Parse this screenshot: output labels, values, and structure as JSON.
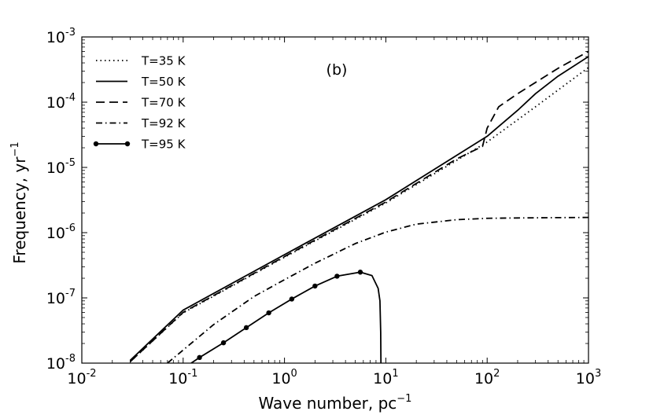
{
  "chart_data": {
    "type": "line",
    "panel_label": "(b)",
    "xlabel": "Wave number, pc",
    "xlabel_sup": "−1",
    "ylabel": "Frequency, yr",
    "ylabel_sup": "−1",
    "xscale": "log",
    "yscale": "log",
    "xlim": [
      0.01,
      1000
    ],
    "ylim": [
      1e-08,
      0.001
    ],
    "legend_position": "upper-left",
    "x_ticks": [
      {
        "value": 0.01,
        "base": "10",
        "exp": "-2"
      },
      {
        "value": 0.1,
        "base": "10",
        "exp": "-1"
      },
      {
        "value": 1,
        "base": "10",
        "exp": "0"
      },
      {
        "value": 10,
        "base": "10",
        "exp": "1"
      },
      {
        "value": 100,
        "base": "10",
        "exp": "2"
      },
      {
        "value": 1000,
        "base": "10",
        "exp": "3"
      }
    ],
    "y_ticks": [
      {
        "value": 1e-08,
        "base": "10",
        "exp": "-8"
      },
      {
        "value": 1e-07,
        "base": "10",
        "exp": "-7"
      },
      {
        "value": 1e-06,
        "base": "10",
        "exp": "-6"
      },
      {
        "value": 1e-05,
        "base": "10",
        "exp": "-5"
      },
      {
        "value": 0.0001,
        "base": "10",
        "exp": "-4"
      },
      {
        "value": 0.001,
        "base": "10",
        "exp": "-3"
      }
    ],
    "series": [
      {
        "name": "T=35 K",
        "style": "dotted",
        "x": [
          0.03,
          0.1,
          1,
          10,
          100,
          300,
          1000
        ],
        "y": [
          1.05e-08,
          5.9e-08,
          4.2e-07,
          2.85e-06,
          2.45e-05,
          8.5e-05,
          0.00034
        ]
      },
      {
        "name": "T=50 K",
        "style": "solid",
        "x": [
          0.03,
          0.1,
          1,
          10,
          100,
          200,
          300,
          500,
          1000
        ],
        "y": [
          1.1e-08,
          6.5e-08,
          4.6e-07,
          3.2e-06,
          3e-05,
          7.5e-05,
          0.000135,
          0.00025,
          0.0005
        ]
      },
      {
        "name": "T=70 K",
        "style": "dashed",
        "x": [
          0.03,
          0.1,
          1,
          10,
          50,
          90,
          100,
          130,
          200,
          500,
          1000
        ],
        "y": [
          1.05e-08,
          6e-08,
          4.3e-07,
          2.95e-06,
          1.35e-05,
          2.1e-05,
          4e-05,
          8.5e-05,
          0.000135,
          0.00033,
          0.0006
        ]
      },
      {
        "name": "T=92 K",
        "style": "dashdot",
        "x": [
          0.07,
          0.2,
          0.5,
          1,
          2,
          5,
          10,
          20,
          50,
          100,
          200,
          500,
          1000
        ],
        "y": [
          1e-08,
          3.9e-08,
          1.05e-07,
          1.9e-07,
          3.4e-07,
          6.8e-07,
          1.02e-06,
          1.35e-06,
          1.58e-06,
          1.66e-06,
          1.68e-06,
          1.7e-06,
          1.71e-06
        ]
      },
      {
        "name": "T=95 K",
        "style": "solid-dot",
        "x": [
          0.12,
          0.145,
          0.25,
          0.42,
          0.7,
          1.18,
          2.0,
          3.3,
          5.6,
          7.3,
          8.4,
          8.75,
          8.9,
          8.95
        ],
        "y": [
          1e-08,
          1.22e-08,
          2.05e-08,
          3.5e-08,
          5.9e-08,
          9.6e-08,
          1.52e-07,
          2.15e-07,
          2.48e-07,
          2.2e-07,
          1.4e-07,
          9e-08,
          3e-08,
          1e-08
        ],
        "marker_x": [
          0.145,
          0.25,
          0.42,
          0.7,
          1.18,
          2.0,
          3.3,
          5.6
        ],
        "marker_y": [
          1.22e-08,
          2.05e-08,
          3.5e-08,
          5.9e-08,
          9.6e-08,
          1.52e-07,
          2.15e-07,
          2.48e-07
        ]
      }
    ]
  }
}
